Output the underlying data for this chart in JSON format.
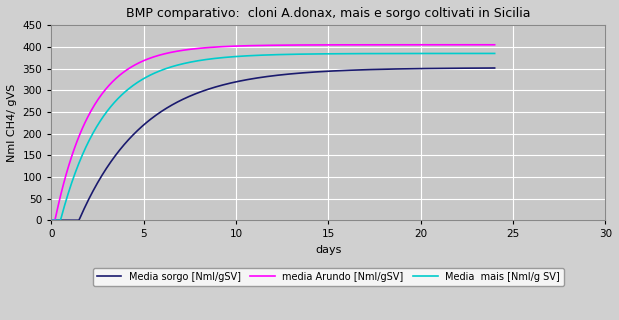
{
  "title": "BMP comparativo:  cloni A.donax, mais e sorgo coltivati in Sicilia",
  "xlabel": "days",
  "ylabel": "Nml CH4/ gVS",
  "xlim": [
    0,
    30
  ],
  "ylim": [
    0,
    450
  ],
  "xticks": [
    0,
    5,
    10,
    15,
    20,
    25,
    30
  ],
  "yticks": [
    0,
    50,
    100,
    150,
    200,
    250,
    300,
    350,
    400,
    450
  ],
  "background_color": "#c8c8c8",
  "fig_background_color": "#d0d0d0",
  "grid_color": "#ffffff",
  "series": {
    "sorgo": {
      "label": "Media sorgo [Nml/gSV]",
      "color": "#1a1a6e",
      "asymptote": 352,
      "rate": 0.28,
      "lag": 1.5,
      "t_end": 24.0
    },
    "arundo": {
      "label": "media Arundo [Nml/gSV]",
      "color": "#ff00ff",
      "asymptote": 405,
      "rate": 0.5,
      "lag": 0.2,
      "t_end": 24.0
    },
    "mais": {
      "label": "Media  mais [Nml/g SV]",
      "color": "#00cccc",
      "asymptote": 385,
      "rate": 0.42,
      "lag": 0.5,
      "t_end": 24.0
    }
  },
  "legend_fontsize": 7,
  "title_fontsize": 9,
  "axis_label_fontsize": 8,
  "tick_fontsize": 7.5
}
